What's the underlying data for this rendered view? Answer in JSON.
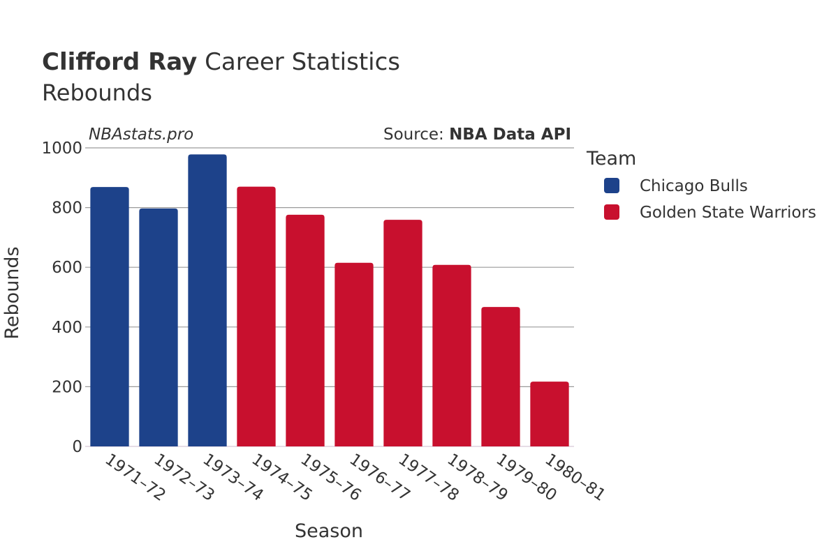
{
  "title": {
    "player": "Clifford Ray",
    "rest": " Career Statistics"
  },
  "subtitle": "Rebounds",
  "watermark": "NBAstats.pro",
  "source": {
    "prefix": "Source: ",
    "name": "NBA Data API"
  },
  "legend": {
    "title": "Team",
    "placement": "right",
    "items": [
      {
        "name": "Chicago Bulls",
        "color": "#1d428a"
      },
      {
        "name": "Golden State Warriors",
        "color": "#c8102e"
      }
    ]
  },
  "chart_data": {
    "type": "bar",
    "xlabel": "Season",
    "ylabel": "Rebounds",
    "ylim": [
      0,
      1000
    ],
    "yticks": [
      0,
      200,
      400,
      600,
      800,
      1000
    ],
    "grid": true,
    "categories": [
      "1971–72",
      "1972–73",
      "1973–74",
      "1974–75",
      "1975–76",
      "1976–77",
      "1977–78",
      "1978–79",
      "1979–80",
      "1980–81"
    ],
    "series": [
      {
        "name": "Chicago Bulls",
        "color": "#1d428a",
        "values": [
          869,
          797,
          978,
          null,
          null,
          null,
          null,
          null,
          null,
          null
        ]
      },
      {
        "name": "Golden State Warriors",
        "color": "#c8102e",
        "values": [
          null,
          null,
          null,
          870,
          776,
          615,
          759,
          608,
          467,
          217
        ]
      }
    ]
  }
}
